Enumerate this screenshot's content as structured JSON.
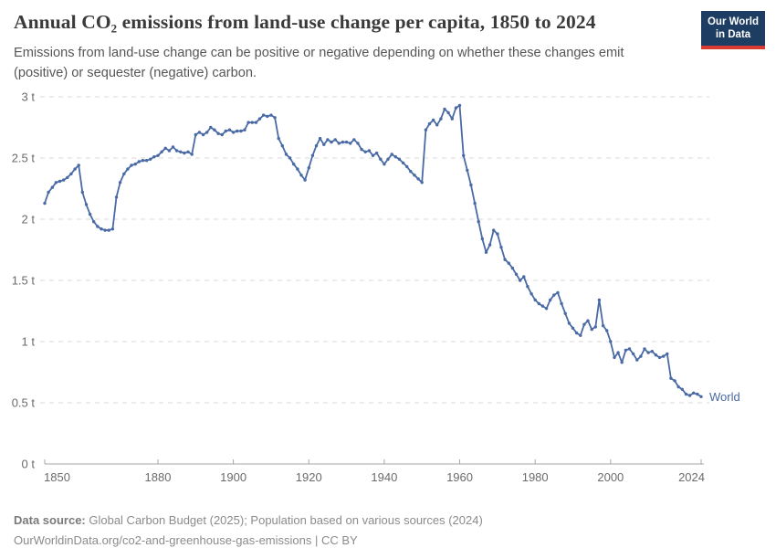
{
  "header": {
    "title": "Annual CO₂ emissions from land-use change per capita, 1850 to 2024",
    "subtitle_line1": "Emissions from land-use change can be positive or negative depending on whether these changes emit",
    "subtitle_line2": "(positive) or sequester (negative) carbon."
  },
  "logo": {
    "line1": "Our World",
    "line2": "in Data",
    "bg_color": "#1d3d63",
    "accent_color": "#d93b33"
  },
  "chart_data": {
    "type": "line",
    "title": "Annual CO₂ emissions from land-use change per capita, 1850 to 2024",
    "xlabel": "",
    "ylabel": "",
    "x": {
      "start": 1850,
      "end": 2024,
      "step": 1
    },
    "xlim": [
      1850,
      2024
    ],
    "ylim": [
      0,
      3
    ],
    "x_ticks": [
      1850,
      1880,
      1900,
      1920,
      1940,
      1960,
      1980,
      2000,
      2024
    ],
    "y_ticks": [
      0,
      0.5,
      1,
      1.5,
      2,
      2.5,
      3
    ],
    "y_tick_suffix": " t",
    "grid": "horizontal-dashed",
    "legend_position": "end-of-line",
    "end_label": "World",
    "series": [
      {
        "name": "World",
        "color": "#4a6aa5",
        "values": [
          2.13,
          2.22,
          2.26,
          2.3,
          2.31,
          2.32,
          2.34,
          2.37,
          2.41,
          2.44,
          2.22,
          2.12,
          2.04,
          1.98,
          1.94,
          1.92,
          1.91,
          1.91,
          1.92,
          2.18,
          2.3,
          2.37,
          2.41,
          2.44,
          2.45,
          2.47,
          2.48,
          2.48,
          2.49,
          2.51,
          2.52,
          2.55,
          2.58,
          2.56,
          2.59,
          2.56,
          2.55,
          2.54,
          2.55,
          2.53,
          2.69,
          2.71,
          2.69,
          2.71,
          2.75,
          2.73,
          2.7,
          2.69,
          2.72,
          2.73,
          2.71,
          2.72,
          2.72,
          2.73,
          2.79,
          2.79,
          2.79,
          2.82,
          2.85,
          2.84,
          2.85,
          2.83,
          2.66,
          2.6,
          2.53,
          2.5,
          2.45,
          2.41,
          2.36,
          2.32,
          2.42,
          2.52,
          2.6,
          2.66,
          2.61,
          2.65,
          2.63,
          2.65,
          2.62,
          2.63,
          2.63,
          2.62,
          2.65,
          2.62,
          2.57,
          2.55,
          2.56,
          2.52,
          2.54,
          2.49,
          2.45,
          2.49,
          2.53,
          2.51,
          2.49,
          2.46,
          2.43,
          2.39,
          2.36,
          2.33,
          2.3,
          2.73,
          2.78,
          2.81,
          2.77,
          2.82,
          2.9,
          2.87,
          2.82,
          2.91,
          2.93,
          2.52,
          2.4,
          2.28,
          2.13,
          1.98,
          1.84,
          1.73,
          1.79,
          1.91,
          1.88,
          1.77,
          1.67,
          1.64,
          1.6,
          1.55,
          1.5,
          1.53,
          1.45,
          1.39,
          1.34,
          1.31,
          1.29,
          1.27,
          1.34,
          1.38,
          1.4,
          1.31,
          1.23,
          1.15,
          1.11,
          1.07,
          1.05,
          1.14,
          1.17,
          1.1,
          1.12,
          1.34,
          1.13,
          1.09,
          1.0,
          0.87,
          0.91,
          0.83,
          0.93,
          0.94,
          0.9,
          0.85,
          0.88,
          0.94,
          0.91,
          0.92,
          0.89,
          0.87,
          0.88,
          0.9,
          0.7,
          0.68,
          0.63,
          0.61,
          0.57,
          0.56,
          0.58,
          0.57,
          0.55
        ]
      }
    ]
  },
  "footer": {
    "source_label": "Data source:",
    "source_text": " Global Carbon Budget (2025); Population based on various sources (2024)",
    "url_text": "OurWorldinData.org/co2-and-greenhouse-gas-emissions | CC BY"
  }
}
